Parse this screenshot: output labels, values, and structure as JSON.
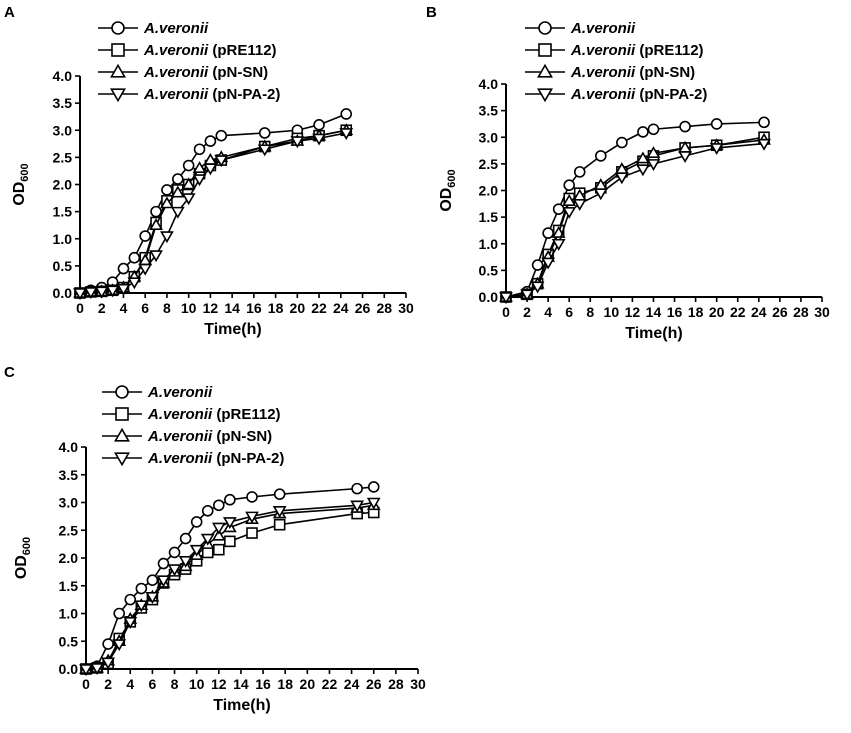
{
  "chart_data": [
    {
      "panel_label": "A",
      "type": "line",
      "xlabel": "Time(h)",
      "ylabel_main": "OD",
      "ylabel_sub": "600",
      "xlim": [
        0,
        30
      ],
      "ylim": [
        0,
        4.0
      ],
      "x_ticks": [
        "0",
        "2",
        "4",
        "6",
        "8",
        "10",
        "12",
        "14",
        "16",
        "18",
        "20",
        "22",
        "24",
        "26",
        "28",
        "30"
      ],
      "y_ticks": [
        "0.0",
        "0.5",
        "1.0",
        "1.5",
        "2.0",
        "2.5",
        "3.0",
        "3.5",
        "4.0"
      ],
      "legend": [
        {
          "marker": "circle",
          "name": "A.veronii",
          "suffix": ""
        },
        {
          "marker": "square",
          "name": "A.veronii",
          "suffix": " (pRE112)"
        },
        {
          "marker": "triangle-up",
          "name": "A.veronii",
          "suffix": " (pN-SN)"
        },
        {
          "marker": "triangle-down",
          "name": "A.veronii",
          "suffix": " (pN-PA-2)"
        }
      ],
      "series": [
        {
          "name": "A.veronii",
          "marker": "circle",
          "x": [
            0,
            1,
            2,
            3,
            4,
            5,
            6,
            7,
            8,
            9,
            10,
            11,
            12,
            13,
            17,
            20,
            22,
            24.5
          ],
          "y": [
            0.0,
            0.05,
            0.1,
            0.2,
            0.45,
            0.65,
            1.05,
            1.5,
            1.9,
            2.1,
            2.35,
            2.65,
            2.8,
            2.9,
            2.95,
            3.0,
            3.1,
            3.3
          ]
        },
        {
          "name": "A.veronii (pRE112)",
          "marker": "square",
          "x": [
            0,
            1,
            2,
            3,
            4,
            5,
            6,
            7,
            8,
            9,
            10,
            11,
            12,
            13,
            17,
            20,
            22,
            24.5
          ],
          "y": [
            0.0,
            0.02,
            0.03,
            0.05,
            0.1,
            0.3,
            0.65,
            1.3,
            1.7,
            1.9,
            2.0,
            2.2,
            2.35,
            2.45,
            2.7,
            2.85,
            2.9,
            3.0
          ]
        },
        {
          "name": "A.veronii (pN-SN)",
          "marker": "triangle-up",
          "x": [
            0,
            1,
            2,
            3,
            4,
            5,
            6,
            7,
            8,
            9,
            10,
            11,
            12,
            13,
            17,
            20,
            22,
            24.5
          ],
          "y": [
            0.0,
            0.02,
            0.03,
            0.05,
            0.1,
            0.3,
            0.6,
            1.25,
            1.65,
            1.85,
            2.0,
            2.3,
            2.45,
            2.5,
            2.7,
            2.8,
            2.9,
            3.0
          ]
        },
        {
          "name": "A.veronii (pN-PA-2)",
          "marker": "triangle-down",
          "x": [
            0,
            1,
            2,
            3,
            4,
            5,
            6,
            7,
            8,
            9,
            10,
            11,
            12,
            13,
            17,
            20,
            22,
            24.5
          ],
          "y": [
            0.0,
            0.02,
            0.03,
            0.05,
            0.08,
            0.2,
            0.45,
            0.7,
            1.05,
            1.5,
            1.75,
            2.1,
            2.3,
            2.45,
            2.65,
            2.8,
            2.85,
            2.95
          ]
        }
      ]
    },
    {
      "panel_label": "B",
      "type": "line",
      "xlabel": "Time(h)",
      "ylabel_main": "OD",
      "ylabel_sub": "600",
      "xlim": [
        0,
        30
      ],
      "ylim": [
        0,
        4.0
      ],
      "x_ticks": [
        "0",
        "2",
        "4",
        "6",
        "8",
        "10",
        "12",
        "14",
        "16",
        "18",
        "20",
        "22",
        "24",
        "26",
        "28",
        "30"
      ],
      "y_ticks": [
        "0.0",
        "0.5",
        "1.0",
        "1.5",
        "2.0",
        "2.5",
        "3.0",
        "3.5",
        "4.0"
      ],
      "legend": [
        {
          "marker": "circle",
          "name": "A.veronii",
          "suffix": ""
        },
        {
          "marker": "square",
          "name": "A.veronii",
          "suffix": " (pRE112)"
        },
        {
          "marker": "triangle-up",
          "name": "A.veronii",
          "suffix": " (pN-SN)"
        },
        {
          "marker": "triangle-down",
          "name": "A.veronii",
          "suffix": " (pN-PA-2)"
        }
      ],
      "series": [
        {
          "name": "A.veronii",
          "marker": "circle",
          "x": [
            0,
            2,
            3,
            4,
            5,
            6,
            7,
            9,
            11,
            13,
            14,
            17,
            20,
            24.5
          ],
          "y": [
            0.0,
            0.1,
            0.6,
            1.2,
            1.65,
            2.1,
            2.35,
            2.65,
            2.9,
            3.1,
            3.15,
            3.2,
            3.25,
            3.28
          ]
        },
        {
          "name": "A.veronii (pRE112)",
          "marker": "square",
          "x": [
            0,
            2,
            3,
            4,
            5,
            6,
            7,
            9,
            11,
            13,
            14,
            17,
            20,
            24.5
          ],
          "y": [
            0.0,
            0.05,
            0.25,
            0.8,
            1.25,
            1.85,
            1.95,
            2.05,
            2.35,
            2.55,
            2.65,
            2.8,
            2.85,
            3.0
          ]
        },
        {
          "name": "A.veronii (pN-SN)",
          "marker": "triangle-up",
          "x": [
            0,
            2,
            3,
            4,
            5,
            6,
            7,
            9,
            11,
            13,
            14,
            17,
            20,
            24.5
          ],
          "y": [
            0.0,
            0.05,
            0.25,
            0.75,
            1.2,
            1.8,
            1.9,
            2.1,
            2.4,
            2.6,
            2.7,
            2.8,
            2.85,
            2.95
          ]
        },
        {
          "name": "A.veronii (pN-PA-2)",
          "marker": "triangle-down",
          "x": [
            0,
            2,
            3,
            4,
            5,
            6,
            7,
            9,
            11,
            13,
            14,
            17,
            20,
            24.5
          ],
          "y": [
            0.0,
            0.05,
            0.2,
            0.65,
            1.0,
            1.6,
            1.75,
            1.95,
            2.25,
            2.4,
            2.5,
            2.65,
            2.8,
            2.88
          ]
        }
      ]
    },
    {
      "panel_label": "C",
      "type": "line",
      "xlabel": "Time(h)",
      "ylabel_main": "OD",
      "ylabel_sub": "600",
      "xlim": [
        0,
        30
      ],
      "ylim": [
        0,
        4.0
      ],
      "x_ticks": [
        "0",
        "2",
        "4",
        "6",
        "8",
        "10",
        "12",
        "14",
        "16",
        "18",
        "20",
        "22",
        "24",
        "26",
        "28",
        "30"
      ],
      "y_ticks": [
        "0.0",
        "0.5",
        "1.0",
        "1.5",
        "2.0",
        "2.5",
        "3.0",
        "3.5",
        "4.0"
      ],
      "legend": [
        {
          "marker": "circle",
          "name": "A.veronii",
          "suffix": ""
        },
        {
          "marker": "square",
          "name": "A.veronii",
          "suffix": " (pRE112)"
        },
        {
          "marker": "triangle-up",
          "name": "A.veronii",
          "suffix": " (pN-SN)"
        },
        {
          "marker": "triangle-down",
          "name": "A.veronii",
          "suffix": " (pN-PA-2)"
        }
      ],
      "series": [
        {
          "name": "A.veronii",
          "marker": "circle",
          "x": [
            0,
            1,
            2,
            3,
            4,
            5,
            6,
            7,
            8,
            9,
            10,
            11,
            12,
            13,
            15,
            17.5,
            24.5,
            26
          ],
          "y": [
            0.0,
            0.05,
            0.45,
            1.0,
            1.25,
            1.45,
            1.6,
            1.9,
            2.1,
            2.35,
            2.65,
            2.85,
            2.95,
            3.05,
            3.1,
            3.15,
            3.25,
            3.28
          ]
        },
        {
          "name": "A.veronii (pRE112)",
          "marker": "square",
          "x": [
            0,
            1,
            2,
            3,
            4,
            5,
            6,
            7,
            8,
            9,
            10,
            11,
            12,
            13,
            15,
            17.5,
            24.5,
            26
          ],
          "y": [
            0.0,
            0.02,
            0.1,
            0.55,
            0.85,
            1.1,
            1.25,
            1.55,
            1.7,
            1.8,
            1.95,
            2.1,
            2.15,
            2.3,
            2.45,
            2.6,
            2.8,
            2.82
          ]
        },
        {
          "name": "A.veronii (pN-SN)",
          "marker": "triangle-up",
          "x": [
            0,
            1,
            2,
            3,
            4,
            5,
            6,
            7,
            8,
            9,
            10,
            11,
            12,
            13,
            15,
            17.5,
            24.5,
            26
          ],
          "y": [
            0.0,
            0.02,
            0.15,
            0.5,
            0.9,
            1.15,
            1.3,
            1.55,
            1.75,
            1.85,
            2.05,
            2.25,
            2.4,
            2.55,
            2.7,
            2.8,
            2.9,
            2.95
          ]
        },
        {
          "name": "A.veronii (pN-PA-2)",
          "marker": "triangle-down",
          "x": [
            0,
            1,
            2,
            3,
            4,
            5,
            6,
            7,
            8,
            9,
            10,
            11,
            12,
            13,
            15,
            17.5,
            24.5,
            26
          ],
          "y": [
            0.0,
            0.02,
            0.12,
            0.45,
            0.85,
            1.15,
            1.3,
            1.6,
            1.8,
            1.95,
            2.15,
            2.35,
            2.55,
            2.65,
            2.75,
            2.85,
            2.95,
            3.0
          ]
        }
      ]
    }
  ]
}
